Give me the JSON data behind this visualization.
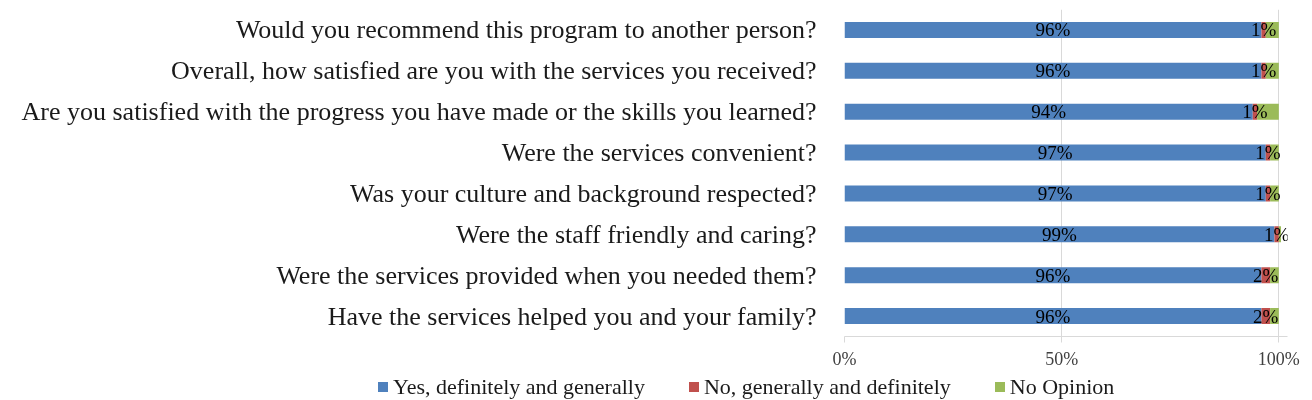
{
  "chart_data": {
    "type": "bar",
    "orientation": "horizontal",
    "stacked": true,
    "categories": [
      "Would you recommend this program to another person?",
      "Overall, how satisfied are you with the services you received?",
      "Are you satisfied with the progress you have made or the skills you learned?",
      "Were the services convenient?",
      "Was your culture and background respected?",
      "Were the staff friendly and caring?",
      "Were the services provided when you needed them?",
      "Have the services helped you and your family?"
    ],
    "series": [
      {
        "name": "Yes, definitely and generally",
        "color": "#4f81bd",
        "values": [
          96,
          96,
          94,
          97,
          97,
          99,
          96,
          96
        ],
        "value_labels": [
          "96%",
          "96%",
          "94%",
          "97%",
          "97%",
          "99%",
          "96%",
          "96%"
        ]
      },
      {
        "name": "No, generally and definitely",
        "color": "#c0504d",
        "values": [
          1,
          1,
          1,
          1,
          1,
          1,
          2,
          2
        ],
        "value_labels": [
          "1%",
          "1%",
          "1%",
          "1%",
          "1%",
          "1%",
          "2%",
          "2%"
        ]
      },
      {
        "name": "No Opinion",
        "color": "#9bbb59",
        "values": [
          3,
          3,
          5,
          2,
          2,
          0.5,
          2,
          2
        ]
      }
    ],
    "xlim": [
      0,
      102
    ],
    "xticks": [
      {
        "value": 0,
        "label": "0%"
      },
      {
        "value": 50,
        "label": "50%"
      },
      {
        "value": 100,
        "label": "100%"
      }
    ],
    "grid": "x",
    "legend": "bottom"
  }
}
